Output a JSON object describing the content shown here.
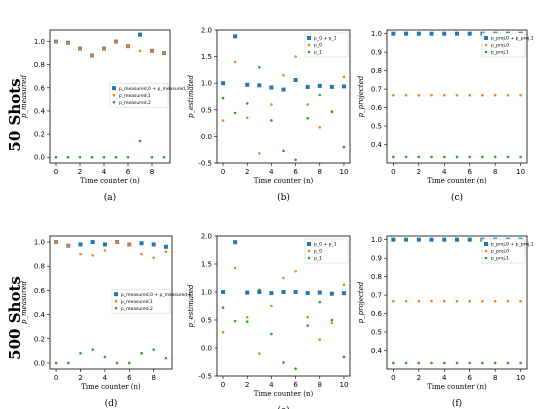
{
  "colors": {
    "blue": "#1f77b4",
    "orange": "#ff7f0e",
    "green": "#2ca02c",
    "gray": "#7f7f7f"
  },
  "row_labels": [
    "50 Shots",
    "500 Shots"
  ],
  "chart_data": [
    {
      "type": "scatter",
      "caption": "(a)",
      "xlabel": "Time counter (n)",
      "ylabel": "p_measured",
      "xlim": [
        -0.5,
        9.5
      ],
      "ylim": [
        -0.05,
        1.1
      ],
      "xticks": [
        "0",
        "2",
        "4",
        "6",
        "8"
      ],
      "yticks": [
        "0.0",
        "0.2",
        "0.4",
        "0.6",
        "0.8",
        "1.0"
      ],
      "legend_position": "center-right",
      "series": [
        {
          "name": "p_measured,0 + p_measured,1",
          "color": "blue",
          "marker": "square",
          "x": [
            0,
            1,
            2,
            3,
            4,
            5,
            6,
            7,
            8,
            9
          ],
          "y": [
            1.0,
            0.99,
            0.94,
            0.88,
            0.94,
            1.0,
            0.96,
            1.06,
            0.92,
            0.9
          ],
          "point_colors": [
            "gray",
            "gray",
            "gray",
            "gray",
            "gray",
            "gray",
            "gray",
            "blue",
            "gray",
            "gray"
          ]
        },
        {
          "name": "p_measured,1",
          "color": "orange",
          "marker": "dot",
          "x": [
            0,
            1,
            2,
            3,
            4,
            5,
            6,
            7,
            8,
            9
          ],
          "y": [
            1.0,
            0.99,
            0.94,
            0.88,
            0.94,
            1.0,
            0.96,
            0.92,
            0.92,
            0.9
          ]
        },
        {
          "name": "p_measured,2",
          "color": "green",
          "marker": "dot",
          "x": [
            0,
            1,
            2,
            3,
            4,
            5,
            6,
            7,
            8,
            9
          ],
          "y": [
            0,
            0,
            0,
            0,
            0,
            0,
            0,
            0.14,
            0,
            0
          ]
        }
      ]
    },
    {
      "type": "scatter",
      "caption": "(b)",
      "xlabel": "Time counter (n)",
      "ylabel": "p_estimated",
      "xlim": [
        -0.5,
        10.5
      ],
      "ylim": [
        -0.5,
        2.0
      ],
      "xticks": [
        "0",
        "2",
        "4",
        "6",
        "8",
        "10"
      ],
      "yticks": [
        "-0.5",
        "0.0",
        "0.5",
        "1.0",
        "1.5",
        "2.0"
      ],
      "legend_position": "top-right",
      "series": [
        {
          "name": "p_0 + p_1",
          "color": "blue",
          "marker": "square",
          "x": [
            0,
            1,
            2,
            3,
            4,
            5,
            6,
            7,
            8,
            9,
            10
          ],
          "y": [
            1.0,
            1.88,
            0.97,
            0.96,
            0.92,
            0.88,
            1.06,
            0.93,
            0.95,
            0.93,
            0.94
          ]
        },
        {
          "name": "p_0",
          "color": "orange",
          "marker": "dot",
          "x": [
            0,
            1,
            2,
            3,
            4,
            5,
            6,
            7,
            8,
            9,
            10
          ],
          "y": [
            0.3,
            1.4,
            0.35,
            -0.32,
            0.6,
            1.15,
            1.5,
            0.6,
            0.17,
            0.47,
            1.12
          ]
        },
        {
          "name": "p_1",
          "color": "green",
          "marker": "dot",
          "x": [
            0,
            1,
            2,
            3,
            4,
            5,
            6,
            7,
            8,
            9,
            10
          ],
          "y": [
            0.72,
            0.44,
            0.62,
            1.3,
            0.3,
            -0.27,
            -0.44,
            0.34,
            0.78,
            0.46,
            -0.2
          ]
        }
      ]
    },
    {
      "type": "scatter",
      "caption": "(c)",
      "xlabel": "Time counter (n)",
      "ylabel": "p_projected",
      "xlim": [
        -0.5,
        10.5
      ],
      "ylim": [
        0.3,
        1.02
      ],
      "xticks": [
        "0",
        "2",
        "4",
        "6",
        "8",
        "10"
      ],
      "yticks": [
        "0.4",
        "0.5",
        "0.6",
        "0.7",
        "0.8",
        "0.9",
        "1.0"
      ],
      "legend_position": "top-right",
      "series": [
        {
          "name": "p_proj,0 + p_proj,1",
          "color": "blue",
          "marker": "square",
          "x": [
            0,
            1,
            2,
            3,
            4,
            5,
            6,
            7,
            8,
            9,
            10
          ],
          "y": [
            1,
            1,
            1,
            1,
            1,
            1,
            1,
            1,
            1,
            1,
            1
          ]
        },
        {
          "name": "p_proj,0",
          "color": "orange",
          "marker": "dot",
          "x": [
            0,
            1,
            2,
            3,
            4,
            5,
            6,
            7,
            8,
            9,
            10
          ],
          "y": [
            0.667,
            0.667,
            0.667,
            0.667,
            0.667,
            0.667,
            0.667,
            0.667,
            0.667,
            0.667,
            0.667
          ]
        },
        {
          "name": "p_proj,1",
          "color": "green",
          "marker": "dot",
          "x": [
            0,
            1,
            2,
            3,
            4,
            5,
            6,
            7,
            8,
            9,
            10
          ],
          "y": [
            0.333,
            0.333,
            0.333,
            0.333,
            0.333,
            0.333,
            0.333,
            0.333,
            0.333,
            0.333,
            0.333
          ]
        }
      ]
    },
    {
      "type": "scatter",
      "caption": "(d)",
      "xlabel": "Time counter (n)",
      "ylabel": "p_measured",
      "xlim": [
        -0.5,
        9.5
      ],
      "ylim": [
        -0.05,
        1.05
      ],
      "xticks": [
        "0",
        "2",
        "4",
        "6",
        "8"
      ],
      "yticks": [
        "0.0",
        "0.2",
        "0.4",
        "0.6",
        "0.8",
        "1.0"
      ],
      "legend_position": "center-right",
      "series": [
        {
          "name": "p_measured,0 + p_measured,1",
          "color": "blue",
          "marker": "square",
          "x": [
            0,
            1,
            2,
            3,
            4,
            5,
            6,
            7,
            8,
            9
          ],
          "y": [
            1.0,
            0.97,
            0.98,
            1.0,
            0.98,
            1.0,
            0.98,
            0.99,
            0.98,
            0.96
          ],
          "point_colors": [
            "gray",
            "gray",
            "blue",
            "blue",
            "blue",
            "gray",
            "gray",
            "blue",
            "blue",
            "blue"
          ]
        },
        {
          "name": "p_measured,1",
          "color": "orange",
          "marker": "dot",
          "x": [
            0,
            1,
            2,
            3,
            4,
            5,
            6,
            7,
            8,
            9
          ],
          "y": [
            1.0,
            0.97,
            0.9,
            0.89,
            0.93,
            1.0,
            0.98,
            0.9,
            0.87,
            0.92
          ]
        },
        {
          "name": "p_measured,2",
          "color": "green",
          "marker": "dot",
          "x": [
            0,
            1,
            2,
            3,
            4,
            5,
            6,
            7,
            8,
            9
          ],
          "y": [
            0,
            0,
            0.08,
            0.11,
            0.05,
            0,
            0,
            0.08,
            0.11,
            0.04
          ]
        }
      ]
    },
    {
      "type": "scatter",
      "caption": "(e)",
      "xlabel": "Time counter (n)",
      "ylabel": "p_estimated",
      "xlim": [
        -0.5,
        10.5
      ],
      "ylim": [
        -0.5,
        2.0
      ],
      "xticks": [
        "0",
        "2",
        "4",
        "6",
        "8",
        "10"
      ],
      "yticks": [
        "-0.5",
        "0.0",
        "0.5",
        "1.0",
        "1.5",
        "2.0"
      ],
      "legend_position": "top-right",
      "series": [
        {
          "name": "p_0 + p_1",
          "color": "blue",
          "marker": "square",
          "x": [
            0,
            1,
            2,
            3,
            4,
            5,
            6,
            7,
            8,
            9,
            10
          ],
          "y": [
            1.0,
            1.89,
            0.99,
            1.0,
            0.98,
            1.0,
            1.0,
            0.98,
            0.99,
            0.97,
            0.98
          ]
        },
        {
          "name": "p_0",
          "color": "orange",
          "marker": "dot",
          "x": [
            0,
            1,
            2,
            3,
            4,
            5,
            6,
            7,
            8,
            9,
            10
          ],
          "y": [
            0.28,
            1.43,
            0.55,
            -0.1,
            0.75,
            1.25,
            1.37,
            0.55,
            0.15,
            0.45,
            1.13
          ]
        },
        {
          "name": "p_1",
          "color": "green",
          "marker": "dot",
          "x": [
            0,
            1,
            2,
            3,
            4,
            5,
            6,
            7,
            8,
            9,
            10
          ],
          "y": [
            0.72,
            0.48,
            0.47,
            1.04,
            0.25,
            -0.26,
            -0.37,
            0.4,
            0.82,
            0.5,
            -0.16
          ]
        }
      ]
    },
    {
      "type": "scatter",
      "caption": "(f)",
      "xlabel": "Time counter (n)",
      "ylabel": "p_projected",
      "xlim": [
        -0.5,
        10.5
      ],
      "ylim": [
        0.3,
        1.02
      ],
      "xticks": [
        "0",
        "2",
        "4",
        "6",
        "8",
        "10"
      ],
      "yticks": [
        "0.4",
        "0.5",
        "0.6",
        "0.7",
        "0.8",
        "0.9",
        "1.0"
      ],
      "legend_position": "top-right",
      "series": [
        {
          "name": "p_proj,0 + p_proj,1",
          "color": "blue",
          "marker": "square",
          "x": [
            0,
            1,
            2,
            3,
            4,
            5,
            6,
            7,
            8,
            9,
            10
          ],
          "y": [
            1,
            1,
            1,
            1,
            1,
            1,
            1,
            1,
            1,
            1,
            1
          ]
        },
        {
          "name": "p_proj,0",
          "color": "orange",
          "marker": "dot",
          "x": [
            0,
            1,
            2,
            3,
            4,
            5,
            6,
            7,
            8,
            9,
            10
          ],
          "y": [
            0.667,
            0.667,
            0.667,
            0.667,
            0.667,
            0.667,
            0.667,
            0.667,
            0.667,
            0.667,
            0.667
          ]
        },
        {
          "name": "p_proj,1",
          "color": "green",
          "marker": "dot",
          "x": [
            0,
            1,
            2,
            3,
            4,
            5,
            6,
            7,
            8,
            9,
            10
          ],
          "y": [
            0.333,
            0.333,
            0.333,
            0.333,
            0.333,
            0.333,
            0.333,
            0.333,
            0.333,
            0.333,
            0.333
          ]
        }
      ]
    }
  ]
}
